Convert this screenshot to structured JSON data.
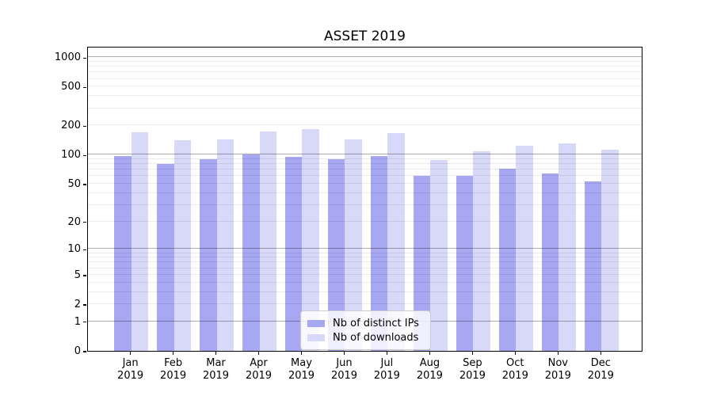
{
  "title": "ASSET 2019",
  "legend": {
    "items": [
      {
        "label": "Nb of distinct IPs",
        "color": "#a7a7f2"
      },
      {
        "label": "Nb of downloads",
        "color": "#d8d8f8"
      }
    ]
  },
  "y_axis": {
    "tick_labels": [
      "1000",
      "500",
      "200",
      "100",
      "50",
      "20",
      "10",
      "5",
      "2",
      "1",
      "0"
    ]
  },
  "x_axis": {
    "year": "2019",
    "months": [
      "Jan",
      "Feb",
      "Mar",
      "Apr",
      "May",
      "Jun",
      "Jul",
      "Aug",
      "Sep",
      "Oct",
      "Nov",
      "Dec"
    ]
  },
  "chart_data": {
    "type": "bar",
    "title": "ASSET 2019",
    "categories": [
      "Jan 2019",
      "Feb 2019",
      "Mar 2019",
      "Apr 2019",
      "May 2019",
      "Jun 2019",
      "Jul 2019",
      "Aug 2019",
      "Sep 2019",
      "Oct 2019",
      "Nov 2019",
      "Dec 2019"
    ],
    "series": [
      {
        "name": "Nb of distinct IPs",
        "color": "#a7a7f2",
        "values": [
          97,
          80,
          90,
          100,
          96,
          90,
          97,
          61,
          61,
          72,
          64,
          53
        ]
      },
      {
        "name": "Nb of downloads",
        "color": "#d8d8f8",
        "values": [
          172,
          141,
          143,
          174,
          184,
          145,
          166,
          88,
          108,
          124,
          130,
          113
        ]
      }
    ],
    "y_scale": "log(1+x)",
    "y_ticks": [
      1000,
      500,
      200,
      100,
      50,
      20,
      10,
      5,
      2,
      1,
      0
    ],
    "ylim": [
      0,
      1300
    ],
    "grid": true,
    "grid_major_at": [
      1,
      10,
      100,
      1000
    ],
    "legend_position": "inside-bottom-center",
    "xlabel": "",
    "ylabel": ""
  }
}
